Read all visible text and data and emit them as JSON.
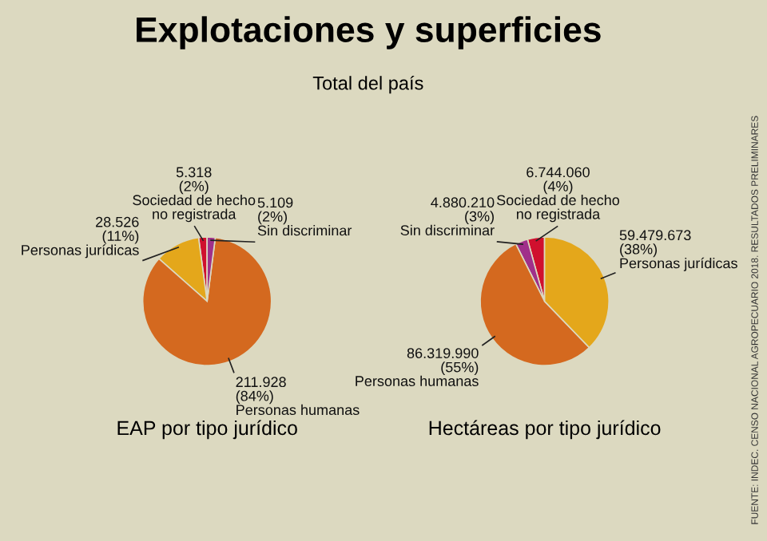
{
  "chart_data": [
    {
      "type": "pie",
      "title": "Explotaciones y superficies",
      "subtitle": "Total del país",
      "xlabel": "EAP por tipo jurídico",
      "categories": [
        "Sociedad de hecho\nno registrada",
        "Personas jurídicas",
        "Personas humanas",
        "Sin discriminar"
      ],
      "values": [
        5318,
        28526,
        211928,
        5109
      ],
      "value_labels": [
        "5.318\n(2%)",
        "28.526\n(11%)",
        "211.928\n(84%)",
        "5.109\n(2%)"
      ],
      "colors": [
        "#d0102e",
        "#e4a71b",
        "#d4691f",
        "#a0308a"
      ]
    },
    {
      "type": "pie",
      "xlabel": "Hectáreas por tipo jurídico",
      "categories": [
        "Sociedad de hecho\nno registrada",
        "Sin discriminar",
        "Personas humanas",
        "Personas jurídicas"
      ],
      "values": [
        6744060,
        4880210,
        86319990,
        59479673
      ],
      "value_labels": [
        "6.744.060\n(4%)",
        "4.880.210\n(3%)",
        "86.319.990\n(55%)",
        "59.479.673\n(38%)"
      ],
      "colors": [
        "#d0102e",
        "#a0308a",
        "#d4691f",
        "#e4a71b"
      ],
      "annotations": [
        "FUENTE: INDEC. CENSO NACIONAL AGROPECUARIO 2018. RESULTADOS PRELIMINARES"
      ]
    }
  ]
}
